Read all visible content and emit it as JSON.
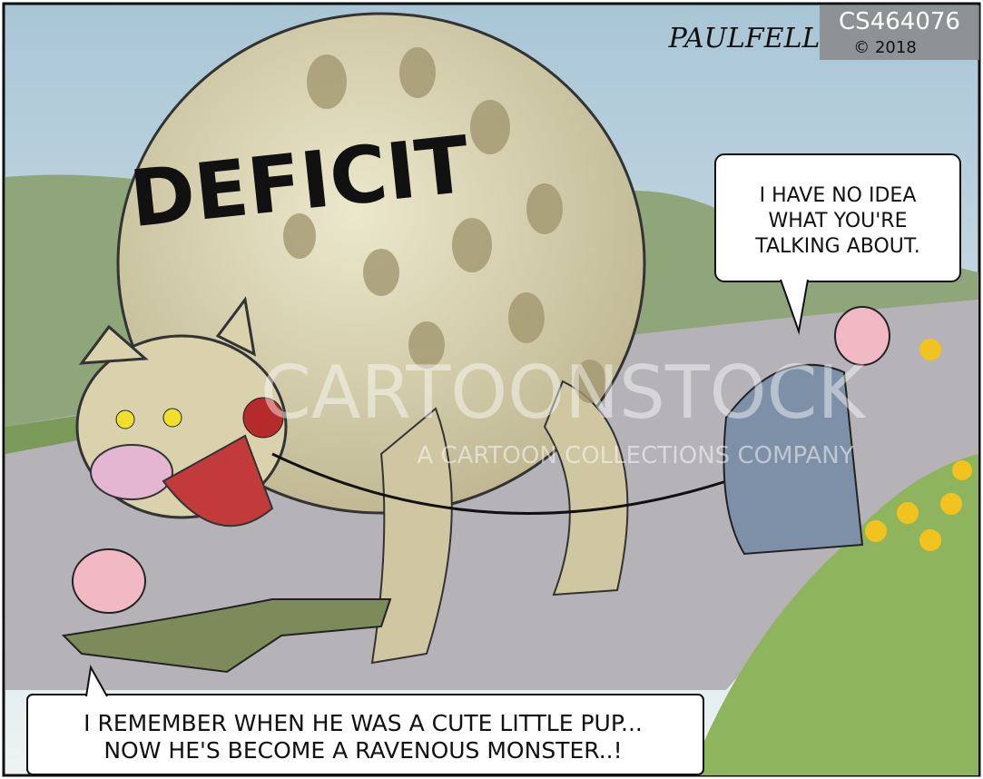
{
  "id_stamp": {
    "code": "CS464076",
    "copyright": "© 2018"
  },
  "signature": "PAULFELL",
  "monster_label": "DEFICIT",
  "speech_bubble": {
    "lines": [
      "I HAVE NO IDEA",
      "WHAT YOU'RE",
      "TALKING ABOUT."
    ]
  },
  "caption": {
    "lines": [
      "I REMEMBER WHEN HE WAS A CUTE LITTLE PUP...",
      "NOW HE'S BECOME A RAVENOUS MONSTER..!"
    ]
  },
  "watermark": {
    "brand": "CARTOONSTOCK",
    "tagline": "A CARTOON COLLECTIONS COMPANY"
  }
}
